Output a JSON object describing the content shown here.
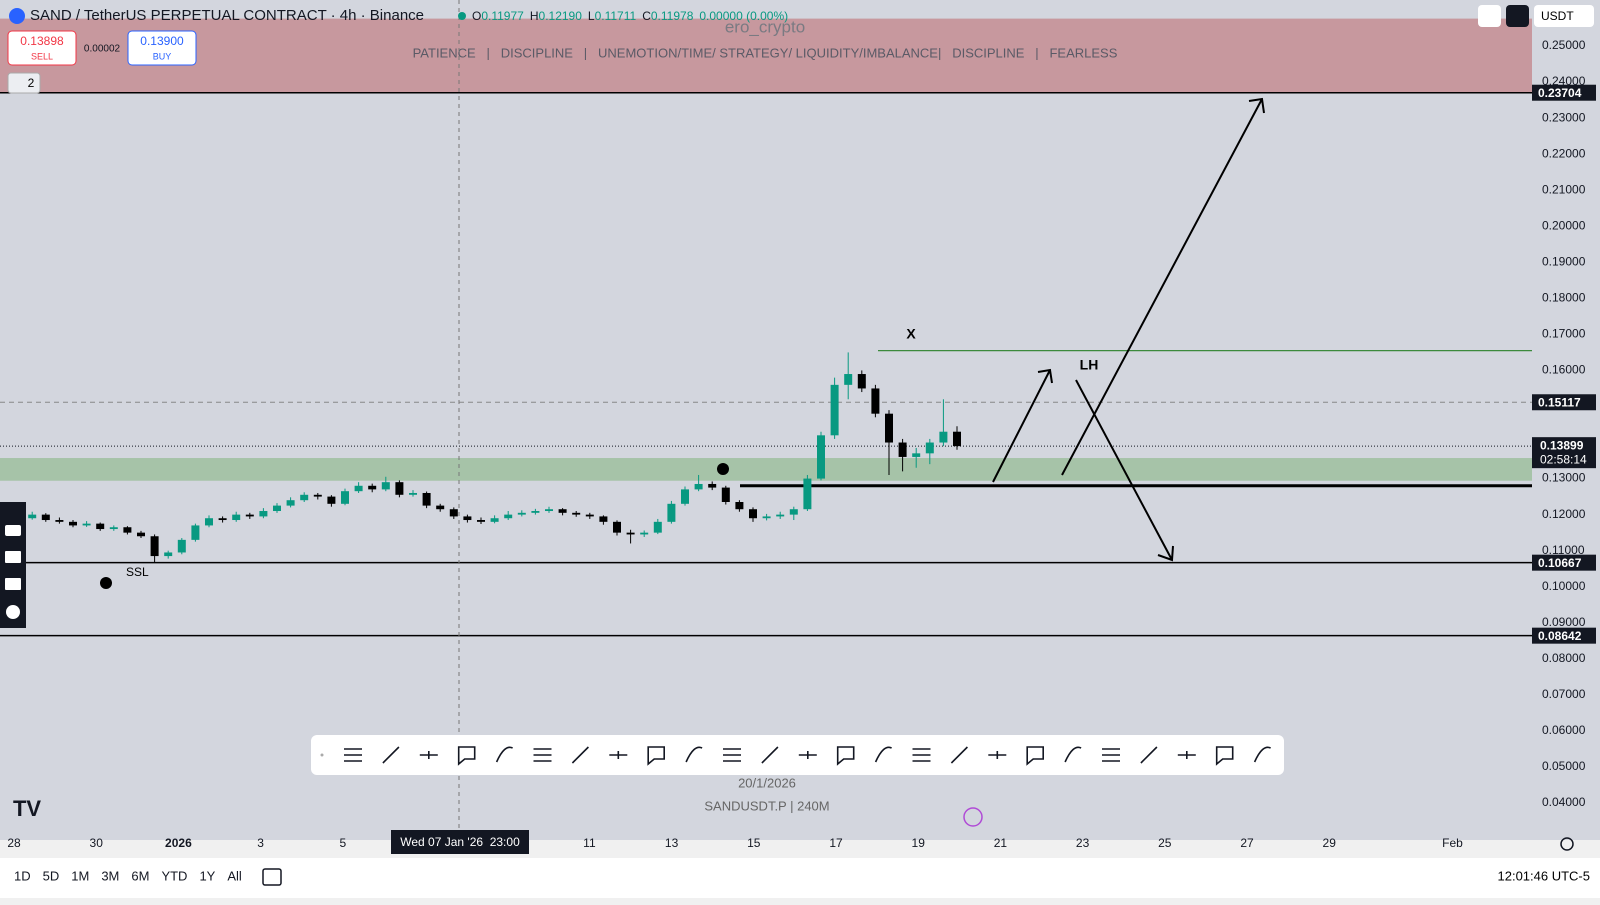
{
  "header": {
    "symbol": "SAND / TetherUS PERPETUAL CONTRACT · 4h · Binance",
    "ohlc": [
      {
        "key": "O",
        "value": "0.11977"
      },
      {
        "key": "H",
        "value": "0.12190"
      },
      {
        "key": "L",
        "value": "0.11711"
      },
      {
        "key": "C",
        "value": "0.11978"
      }
    ],
    "change": "0.00000 (0.00%)",
    "sell_price": "0.13898",
    "sell_label": "SELL",
    "spread": "0.00002",
    "buy_price": "0.13900",
    "buy_label": "BUY",
    "indicator_count": "2",
    "currency": "USDT"
  },
  "banner": {
    "watermark": "ero_crypto",
    "text": "PATIENCE   |   DISCIPLINE   |   UNEMOTION/TIME/ STRATEGY/ LIQUIDITY/IMBALANCE|   DISCIPLINE   |   FEARLESS"
  },
  "chart_data": {
    "type": "candlestick",
    "up_color": "#089981",
    "down_color": "#000000",
    "candles": [
      [
        0.12,
        0.121,
        0.1188,
        0.1195
      ],
      [
        0.1195,
        0.1205,
        0.1185,
        0.119
      ],
      [
        0.119,
        0.1208,
        0.1186,
        0.12
      ],
      [
        0.12,
        0.1204,
        0.118,
        0.1185
      ],
      [
        0.1185,
        0.1192,
        0.1175,
        0.118
      ],
      [
        0.118,
        0.1185,
        0.1165,
        0.117
      ],
      [
        0.117,
        0.1182,
        0.1166,
        0.1175
      ],
      [
        0.1175,
        0.1178,
        0.1155,
        0.116
      ],
      [
        0.116,
        0.117,
        0.1155,
        0.1165
      ],
      [
        0.1165,
        0.1168,
        0.1145,
        0.115
      ],
      [
        0.115,
        0.1155,
        0.1135,
        0.114
      ],
      [
        0.114,
        0.1145,
        0.1066,
        0.1085
      ],
      [
        0.1085,
        0.11,
        0.1078,
        0.1095
      ],
      [
        0.1095,
        0.1135,
        0.109,
        0.113
      ],
      [
        0.113,
        0.1175,
        0.1125,
        0.117
      ],
      [
        0.117,
        0.1198,
        0.1165,
        0.119
      ],
      [
        0.119,
        0.1195,
        0.1178,
        0.1185
      ],
      [
        0.1185,
        0.1208,
        0.118,
        0.12
      ],
      [
        0.12,
        0.1205,
        0.1188,
        0.1195
      ],
      [
        0.1195,
        0.1218,
        0.119,
        0.121
      ],
      [
        0.121,
        0.1232,
        0.1205,
        0.1225
      ],
      [
        0.1225,
        0.1248,
        0.122,
        0.124
      ],
      [
        0.124,
        0.1262,
        0.1235,
        0.1255
      ],
      [
        0.1255,
        0.126,
        0.1242,
        0.125
      ],
      [
        0.125,
        0.1254,
        0.1222,
        0.123
      ],
      [
        0.123,
        0.1272,
        0.1226,
        0.1265
      ],
      [
        0.1265,
        0.129,
        0.126,
        0.128
      ],
      [
        0.128,
        0.1286,
        0.1262,
        0.127
      ],
      [
        0.127,
        0.1305,
        0.1265,
        0.129
      ],
      [
        0.129,
        0.1295,
        0.1248,
        0.1255
      ],
      [
        0.1255,
        0.1268,
        0.125,
        0.126
      ],
      [
        0.126,
        0.1264,
        0.1218,
        0.1225
      ],
      [
        0.1225,
        0.123,
        0.1208,
        0.1215
      ],
      [
        0.1215,
        0.122,
        0.1188,
        0.1195
      ],
      [
        0.1195,
        0.12,
        0.1178,
        0.1185
      ],
      [
        0.1185,
        0.1192,
        0.1174,
        0.118
      ],
      [
        0.118,
        0.1198,
        0.1176,
        0.119
      ],
      [
        0.119,
        0.121,
        0.1185,
        0.12
      ],
      [
        0.12,
        0.1212,
        0.1195,
        0.1205
      ],
      [
        0.1205,
        0.1216,
        0.12,
        0.121
      ],
      [
        0.121,
        0.1222,
        0.1205,
        0.1215
      ],
      [
        0.1215,
        0.1218,
        0.1198,
        0.1205
      ],
      [
        0.1205,
        0.121,
        0.1194,
        0.12
      ],
      [
        0.12,
        0.1205,
        0.1188,
        0.1195
      ],
      [
        0.1195,
        0.1198,
        0.1172,
        0.118
      ],
      [
        0.118,
        0.1184,
        0.1142,
        0.115
      ],
      [
        0.115,
        0.1158,
        0.112,
        0.1145
      ],
      [
        0.1145,
        0.1156,
        0.1138,
        0.115
      ],
      [
        0.115,
        0.1188,
        0.1146,
        0.118
      ],
      [
        0.118,
        0.1238,
        0.1175,
        0.123
      ],
      [
        0.123,
        0.1278,
        0.1225,
        0.127
      ],
      [
        0.127,
        0.131,
        0.1265,
        0.1285
      ],
      [
        0.1285,
        0.1292,
        0.1268,
        0.1275
      ],
      [
        0.1275,
        0.128,
        0.1228,
        0.1235
      ],
      [
        0.1235,
        0.124,
        0.1208,
        0.1215
      ],
      [
        0.1215,
        0.122,
        0.118,
        0.119
      ],
      [
        0.119,
        0.1202,
        0.1184,
        0.1195
      ],
      [
        0.1195,
        0.1208,
        0.1188,
        0.12
      ],
      [
        0.12,
        0.1222,
        0.1185,
        0.1215
      ],
      [
        0.1215,
        0.131,
        0.121,
        0.13
      ],
      [
        0.13,
        0.143,
        0.1295,
        0.142
      ],
      [
        0.142,
        0.158,
        0.141,
        0.156
      ],
      [
        0.156,
        0.165,
        0.152,
        0.159
      ],
      [
        0.159,
        0.16,
        0.154,
        0.155
      ],
      [
        0.155,
        0.156,
        0.147,
        0.148
      ],
      [
        0.148,
        0.149,
        0.131,
        0.14
      ],
      [
        0.14,
        0.141,
        0.132,
        0.136
      ],
      [
        0.136,
        0.1385,
        0.133,
        0.137
      ],
      [
        0.137,
        0.141,
        0.134,
        0.14
      ],
      [
        0.14,
        0.152,
        0.139,
        0.143
      ],
      [
        0.143,
        0.1445,
        0.138,
        0.139
      ]
    ],
    "ylim": [
      0.04,
      0.25
    ],
    "yticks": [
      {
        "value": 0.25,
        "label": "0.25000"
      },
      {
        "value": 0.24,
        "label": "0.24000"
      },
      {
        "value": 0.23,
        "label": "0.23000"
      },
      {
        "value": 0.22,
        "label": "0.22000"
      },
      {
        "value": 0.21,
        "label": "0.21000"
      },
      {
        "value": 0.2,
        "label": "0.20000"
      },
      {
        "value": 0.19,
        "label": "0.19000"
      },
      {
        "value": 0.18,
        "label": "0.18000"
      },
      {
        "value": 0.17,
        "label": "0.17000"
      },
      {
        "value": 0.16,
        "label": "0.16000"
      },
      {
        "value": 0.13,
        "label": "0.13000"
      },
      {
        "value": 0.12,
        "label": "0.12000"
      },
      {
        "value": 0.11,
        "label": "0.11000"
      },
      {
        "value": 0.1,
        "label": "0.10000"
      },
      {
        "value": 0.09,
        "label": "0.09000"
      },
      {
        "value": 0.08,
        "label": "0.08000"
      },
      {
        "value": 0.07,
        "label": "0.07000"
      },
      {
        "value": 0.06,
        "label": "0.06000"
      },
      {
        "value": 0.05,
        "label": "0.05000"
      },
      {
        "value": 0.04,
        "label": "0.04000"
      }
    ],
    "levels": [
      {
        "value": 0.23704,
        "label": "0.23704",
        "style": "solid"
      },
      {
        "value": 0.15117,
        "label": "0.15117",
        "style": "dashed"
      },
      {
        "value": 0.10667,
        "label": "0.10667",
        "style": "solid"
      },
      {
        "value": 0.08642,
        "label": "0.08642",
        "style": "solid"
      }
    ],
    "current_price": {
      "value": 0.13899,
      "label": "0.13899",
      "countdown": "02:58:14"
    },
    "zones": [
      {
        "from": 0.23704,
        "to": 0.2576,
        "color": "#c48d93"
      },
      {
        "from": 0.1294,
        "to": 0.1357,
        "color": "#9dbf9f"
      }
    ],
    "resistance": 0.1655,
    "support": 0.128,
    "annotations": {
      "x": "X",
      "lh": "LH",
      "ssl": "SSL"
    },
    "dates": [
      "28",
      "30",
      "2026",
      "3",
      "5",
      "11",
      "13",
      "15",
      "17",
      "19",
      "21",
      "23",
      "25",
      "27",
      "29",
      "Feb"
    ],
    "crosshair_date": "Wed 07 Jan '26  23:00",
    "cursor_date": "20/1/2026",
    "pane_label": "SANDUSDT.P | 240M"
  },
  "footer": {
    "periods": [
      "1D",
      "5D",
      "1M",
      "3M",
      "6M",
      "YTD",
      "1Y",
      "All"
    ],
    "clock": "12:01:46 UTC-5"
  }
}
